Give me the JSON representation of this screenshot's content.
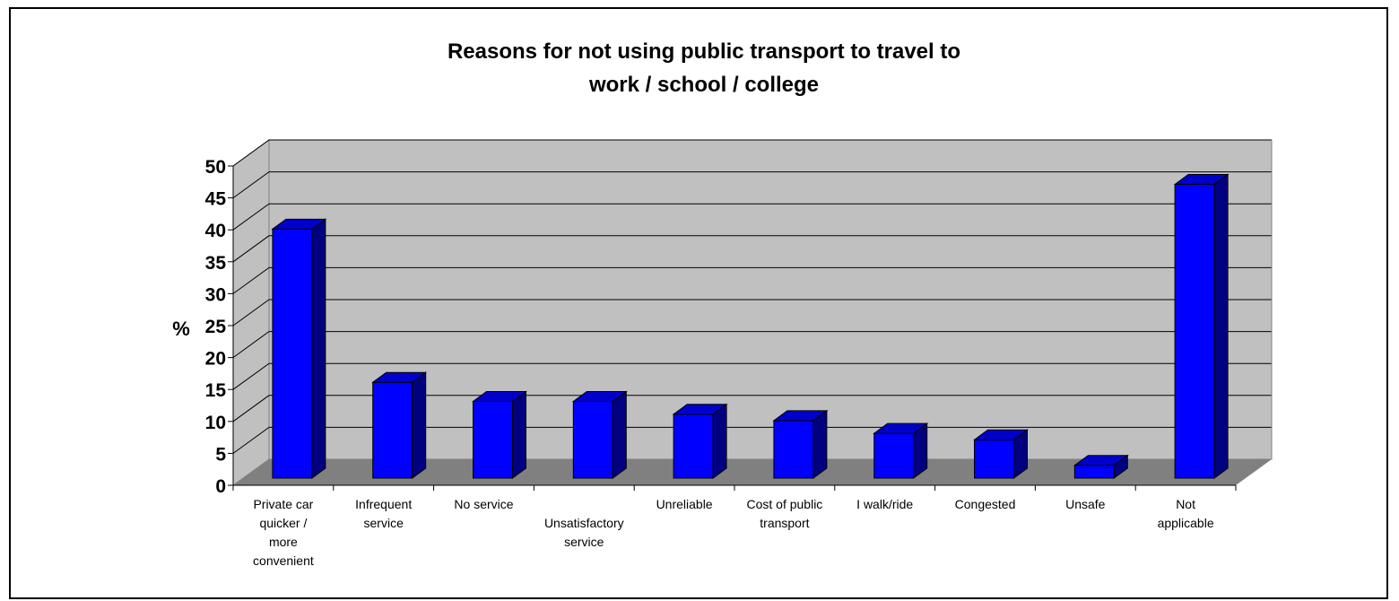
{
  "chart_data": {
    "type": "bar",
    "title_lines": [
      "Reasons for not using public transport to travel to",
      "work / school / college"
    ],
    "ylabel": "%",
    "xlabel": "",
    "ylim": [
      0,
      50
    ],
    "yticks": [
      "0",
      "5",
      "10",
      "15",
      "20",
      "25",
      "30",
      "35",
      "40",
      "45",
      "50"
    ],
    "categories": [
      [
        "Private car",
        "quicker /",
        "more",
        "convenient"
      ],
      [
        "Infrequent",
        "service"
      ],
      [
        "No service"
      ],
      [
        "",
        "Unsatisfactory",
        "service"
      ],
      [
        "Unreliable"
      ],
      [
        "Cost of public",
        "transport"
      ],
      [
        "I walk/ride"
      ],
      [
        "Congested"
      ],
      [
        "Unsafe"
      ],
      [
        "Not",
        "applicable"
      ]
    ],
    "values": [
      39,
      15,
      12,
      12,
      10,
      9,
      7,
      6,
      2,
      46
    ],
    "grid": true,
    "style": "3d-column",
    "colors": {
      "bar_front": "#0000FF",
      "bar_top": "#0000CC",
      "bar_side": "#000080",
      "wall": "#C0C0C0",
      "floor": "#808080",
      "gridline": "#000000"
    }
  }
}
